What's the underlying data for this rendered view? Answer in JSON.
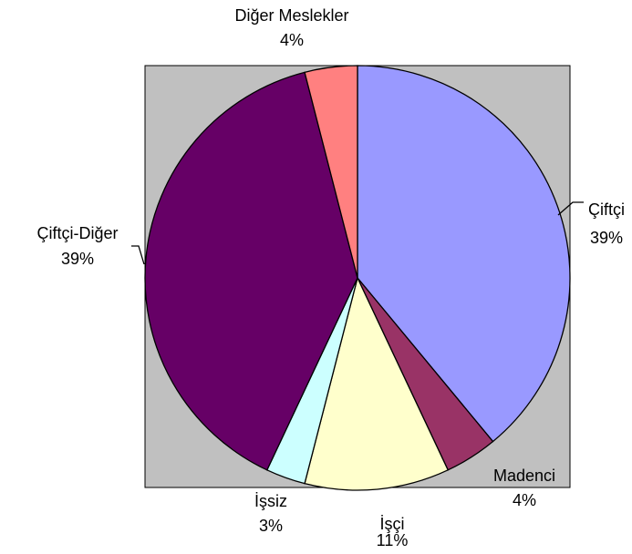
{
  "chart_data": {
    "type": "pie",
    "categories": [
      "Çiftçi",
      "Madenci",
      "İşçi",
      "İşsiz",
      "Çiftçi-Diğer",
      "Diğer Meslekler"
    ],
    "values": [
      39,
      4,
      11,
      3,
      39,
      4
    ],
    "value_labels": [
      "39%",
      "4%",
      "11%",
      "3%",
      "39%",
      "4%"
    ],
    "colors": [
      "#9999ff",
      "#993366",
      "#ffffcc",
      "#ccffff",
      "#660066",
      "#ff8080"
    ],
    "plot_background": "#c0c0c0"
  }
}
